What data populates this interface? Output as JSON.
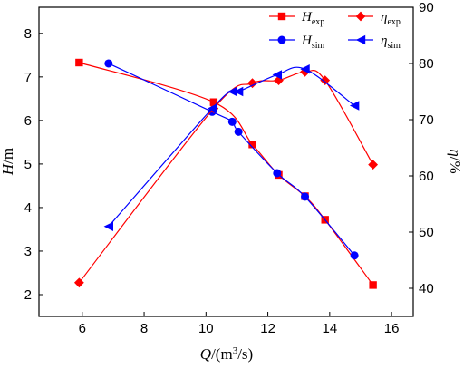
{
  "chart_data": {
    "type": "line",
    "xlabel": {
      "italic": "Q",
      "rest": "/(m",
      "sup": "3",
      "tail": "/s)"
    },
    "ylabel_left": {
      "italic": "H",
      "rest": "/m"
    },
    "ylabel_right": {
      "italic": "η",
      "rest": "/%"
    },
    "xlim": [
      4.6,
      16.7
    ],
    "ylim_left": [
      1.5,
      8.6
    ],
    "ylim_right": [
      35,
      90
    ],
    "x_ticks": [
      "6",
      "8",
      "10",
      "12",
      "14",
      "16"
    ],
    "y_left_ticks": [
      "2",
      "3",
      "4",
      "5",
      "6",
      "7",
      "8"
    ],
    "y_right_ticks": [
      "40",
      "50",
      "60",
      "70",
      "80",
      "90"
    ],
    "legend_position": "top-right",
    "series": [
      {
        "name": "H_exp",
        "main": "H",
        "sub": "exp",
        "axis": "left",
        "marker": "square",
        "color": "#ff0000",
        "x": [
          5.9,
          10.25,
          11.5,
          12.35,
          13.2,
          13.85,
          15.4
        ],
        "y": [
          7.33,
          6.42,
          5.45,
          4.75,
          4.26,
          3.72,
          2.22
        ]
      },
      {
        "name": "H_sim",
        "main": "H",
        "sub": "sim",
        "axis": "left",
        "marker": "circle",
        "color": "#0000ff",
        "x": [
          6.85,
          10.2,
          10.85,
          11.05,
          12.3,
          13.2,
          14.8
        ],
        "y": [
          7.31,
          6.2,
          5.97,
          5.74,
          4.79,
          4.25,
          2.9
        ]
      },
      {
        "name": "η_exp",
        "main": "η",
        "sub": "exp",
        "axis": "right",
        "marker": "diamond",
        "color": "#ff0000",
        "x": [
          5.9,
          10.25,
          11.5,
          12.35,
          13.2,
          13.85,
          15.4
        ],
        "y": [
          41,
          72,
          76.5,
          77,
          78.5,
          77,
          62
        ]
      },
      {
        "name": "η_sim",
        "main": "η",
        "sub": "sim",
        "axis": "right",
        "marker": "triangle-left",
        "color": "#0000ff",
        "x": [
          6.85,
          10.2,
          10.85,
          11.05,
          12.3,
          13.2,
          14.8
        ],
        "y": [
          51,
          72,
          75,
          75,
          78,
          79,
          72.5
        ]
      }
    ]
  }
}
